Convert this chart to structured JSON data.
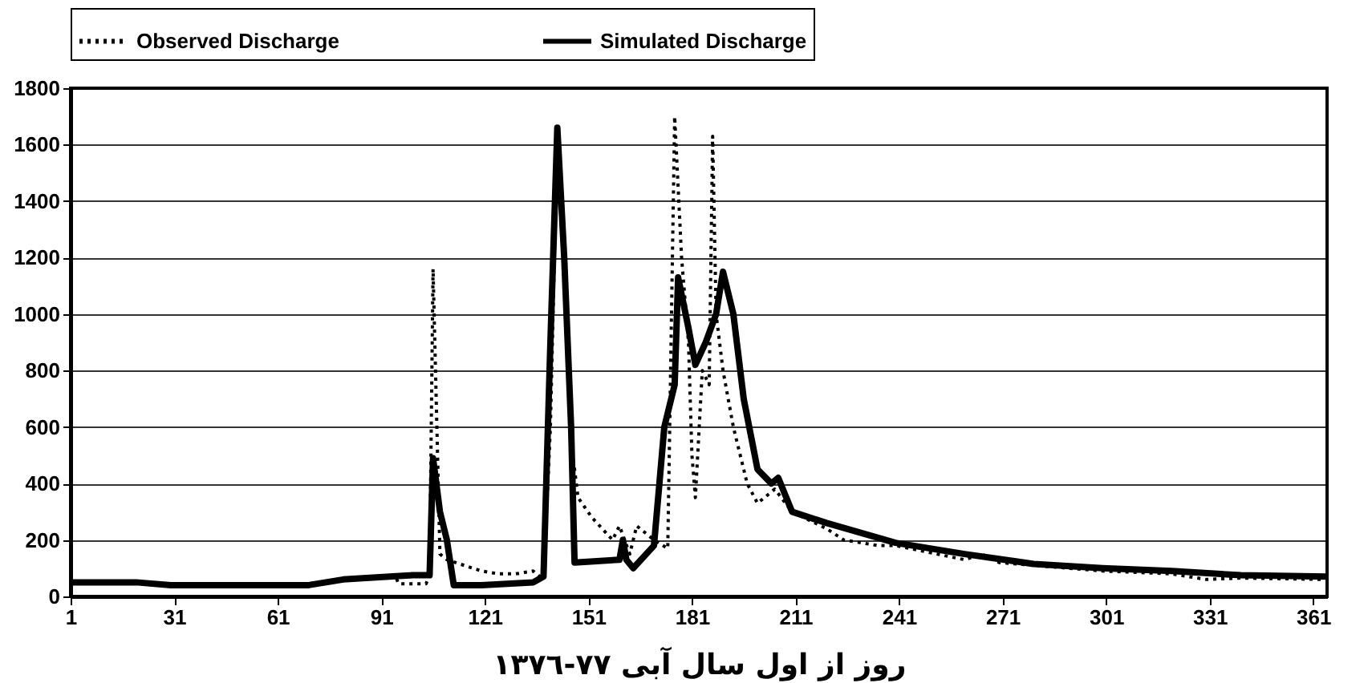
{
  "chart_data": {
    "type": "line",
    "xlabel": "روز از اول سال آبی ٧٧-١٣٧٦",
    "xlim": [
      1,
      365
    ],
    "xticks": [
      1,
      31,
      61,
      91,
      121,
      151,
      181,
      211,
      241,
      271,
      301,
      331,
      361
    ],
    "ylim": [
      0,
      1800
    ],
    "yticks": [
      0,
      200,
      400,
      600,
      800,
      1000,
      1200,
      1400,
      1600,
      1800
    ],
    "grid": "y",
    "legend": "top",
    "series": [
      {
        "name": "Observed Discharge",
        "color": "#000000",
        "line_style": "dotted",
        "x": [
          1,
          20,
          30,
          60,
          70,
          80,
          95,
          96,
          104,
          105,
          106,
          108,
          110,
          115,
          120,
          125,
          130,
          135,
          138,
          140,
          142,
          144,
          146,
          148,
          152,
          158,
          160,
          163,
          165,
          170,
          174,
          176,
          178,
          180,
          181,
          182,
          184,
          186,
          187,
          188,
          190,
          193,
          197,
          200,
          205,
          210,
          220,
          225,
          235,
          240,
          260,
          265,
          270,
          280,
          300,
          320,
          330,
          340,
          365
        ],
        "values": [
          50,
          50,
          40,
          40,
          45,
          60,
          75,
          45,
          45,
          80,
          1160,
          150,
          130,
          110,
          90,
          80,
          80,
          90,
          60,
          600,
          1650,
          1200,
          550,
          350,
          280,
          200,
          250,
          150,
          250,
          200,
          170,
          1700,
          1200,
          900,
          500,
          350,
          800,
          750,
          1630,
          1000,
          800,
          600,
          400,
          330,
          380,
          300,
          240,
          200,
          180,
          180,
          130,
          150,
          120,
          110,
          90,
          80,
          60,
          65,
          60
        ]
      },
      {
        "name": "Simulated Discharge",
        "color": "#000000",
        "line_style": "solid",
        "x": [
          1,
          20,
          30,
          70,
          80,
          100,
          105,
          106,
          108,
          110,
          112,
          120,
          135,
          138,
          140,
          142,
          144,
          146,
          147,
          160,
          161,
          162,
          164,
          170,
          173,
          176,
          177,
          180,
          182,
          185,
          188,
          190,
          193,
          196,
          200,
          204,
          206,
          210,
          220,
          240,
          260,
          280,
          300,
          320,
          340,
          365
        ],
        "values": [
          50,
          50,
          40,
          40,
          60,
          75,
          75,
          490,
          300,
          200,
          40,
          40,
          50,
          70,
          900,
          1660,
          1200,
          600,
          120,
          130,
          200,
          130,
          100,
          180,
          600,
          750,
          1130,
          950,
          820,
          900,
          1000,
          1150,
          1000,
          700,
          450,
          400,
          420,
          300,
          260,
          190,
          150,
          115,
          100,
          90,
          75,
          70
        ]
      }
    ]
  }
}
